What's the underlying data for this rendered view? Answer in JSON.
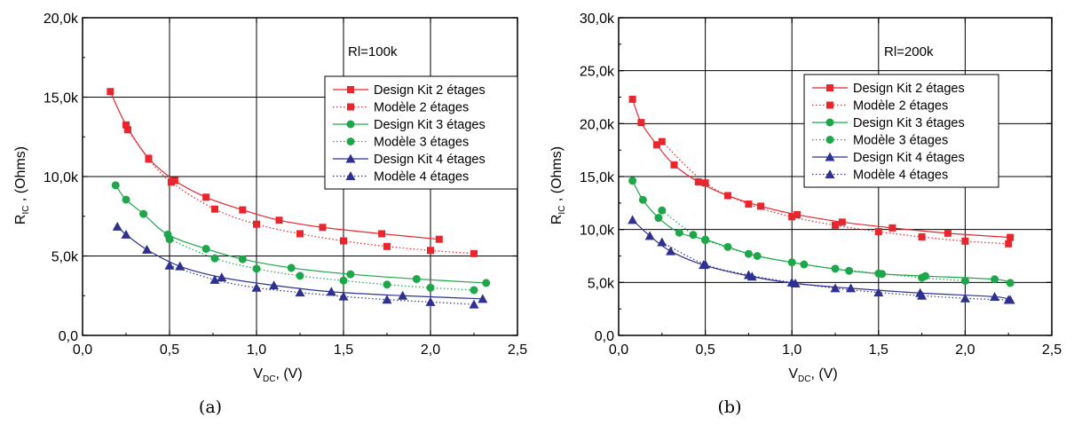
{
  "colors": {
    "red": "#e8262d",
    "green": "#1ea64a",
    "blue": "#2e3190"
  },
  "chart_data": [
    {
      "type": "line",
      "caption": "(a)",
      "annotation": "Rl=100k",
      "xlabel_main": "V",
      "xlabel_sub": "DC",
      "xlabel_rest": ", (V)",
      "ylabel_main": "R",
      "ylabel_sub": "IC",
      "ylabel_rest": " , (Ohms)",
      "xlim": [
        0,
        2.5
      ],
      "ylim": [
        0,
        20000
      ],
      "xticks": [
        0,
        0.5,
        1.0,
        1.5,
        2.0,
        2.5
      ],
      "xtick_labels": [
        "0,0",
        "0,5",
        "1,0",
        "1,5",
        "2,0",
        "2,5"
      ],
      "yticks": [
        0,
        5000,
        10000,
        15000,
        20000
      ],
      "ytick_labels": [
        "0,0",
        "5,0k",
        "10,0k",
        "15,0k",
        "20,0k"
      ],
      "grid": true,
      "legend_position": "top-right",
      "series": [
        {
          "name": "Design Kit 2 étages",
          "color": "red",
          "marker": "square",
          "line": "solid",
          "x": [
            0.16,
            0.25,
            0.38,
            0.53,
            0.71,
            0.92,
            1.13,
            1.38,
            1.72,
            2.05
          ],
          "y": [
            15350,
            13250,
            11150,
            9750,
            8700,
            7900,
            7250,
            6800,
            6400,
            6050
          ]
        },
        {
          "name": "Modèle 2 étages",
          "color": "red",
          "marker": "square",
          "line": "dotted",
          "x": [
            0.26,
            0.38,
            0.51,
            0.76,
            1.0,
            1.25,
            1.5,
            1.75,
            2.0,
            2.25
          ],
          "y": [
            12950,
            11100,
            9650,
            7950,
            7000,
            6400,
            5950,
            5600,
            5350,
            5150
          ]
        },
        {
          "name": "Design Kit 3 étages",
          "color": "green",
          "marker": "circle",
          "line": "solid",
          "x": [
            0.19,
            0.25,
            0.35,
            0.49,
            0.71,
            0.92,
            1.2,
            1.54,
            1.92,
            2.32
          ],
          "y": [
            9450,
            8550,
            7650,
            6350,
            5450,
            4800,
            4250,
            3850,
            3550,
            3300
          ]
        },
        {
          "name": "Modèle 3 étages",
          "color": "green",
          "marker": "circle",
          "line": "dotted",
          "x": [
            0.5,
            0.76,
            1.0,
            1.25,
            1.5,
            1.75,
            2.0,
            2.25
          ],
          "y": [
            6050,
            4850,
            4200,
            3750,
            3450,
            3200,
            3000,
            2850
          ]
        },
        {
          "name": "Design Kit 4 étages",
          "color": "blue",
          "marker": "triangle",
          "line": "solid",
          "x": [
            0.2,
            0.25,
            0.37,
            0.56,
            0.8,
            1.1,
            1.43,
            1.84,
            2.3
          ],
          "y": [
            6850,
            6350,
            5400,
            4350,
            3650,
            3150,
            2750,
            2500,
            2300
          ]
        },
        {
          "name": "Modèle 4 étages",
          "color": "blue",
          "marker": "triangle",
          "line": "dotted",
          "x": [
            0.5,
            0.76,
            1.0,
            1.25,
            1.5,
            1.75,
            2.0,
            2.25
          ],
          "y": [
            4400,
            3500,
            3000,
            2700,
            2450,
            2250,
            2100,
            1950
          ]
        }
      ]
    },
    {
      "type": "line",
      "caption": "(b)",
      "annotation": "Rl=200k",
      "xlabel_main": "V",
      "xlabel_sub": "DC",
      "xlabel_rest": ", (V)",
      "ylabel_main": "R",
      "ylabel_sub": "IC",
      "ylabel_rest": " , (Ohms)",
      "xlim": [
        0,
        2.5
      ],
      "ylim": [
        0,
        30000
      ],
      "xticks": [
        0,
        0.5,
        1.0,
        1.5,
        2.0,
        2.5
      ],
      "xtick_labels": [
        "0,0",
        "0,5",
        "1,0",
        "1,5",
        "2,0",
        "2,5"
      ],
      "yticks": [
        0,
        5000,
        10000,
        15000,
        20000,
        25000,
        30000
      ],
      "ytick_labels": [
        "0,0",
        "5,0k",
        "10,0k",
        "15,0k",
        "20,0k",
        "25,0k",
        "30,0k"
      ],
      "grid": true,
      "legend_position": "top-right",
      "series": [
        {
          "name": "Design Kit 2 étages",
          "color": "red",
          "marker": "square",
          "line": "solid",
          "x": [
            0.08,
            0.13,
            0.22,
            0.32,
            0.46,
            0.63,
            0.82,
            1.03,
            1.29,
            1.58,
            1.9,
            2.26
          ],
          "y": [
            22300,
            20100,
            18000,
            16100,
            14500,
            13200,
            12200,
            11400,
            10700,
            10150,
            9650,
            9250
          ]
        },
        {
          "name": "Modèle 2 étages",
          "color": "red",
          "marker": "square",
          "line": "dotted",
          "x": [
            0.25,
            0.5,
            0.75,
            1.0,
            1.25,
            1.5,
            1.75,
            2.0,
            2.25
          ],
          "y": [
            18300,
            14400,
            12400,
            11200,
            10400,
            9800,
            9300,
            8900,
            8650
          ]
        },
        {
          "name": "Design Kit 3 étages",
          "color": "green",
          "marker": "circle",
          "line": "solid",
          "x": [
            0.08,
            0.14,
            0.23,
            0.35,
            0.5,
            0.63,
            0.8,
            1.07,
            1.33,
            1.52,
            1.77,
            2.17,
            2.26
          ],
          "y": [
            14600,
            12800,
            11100,
            9700,
            9050,
            8350,
            7500,
            6700,
            6100,
            5800,
            5600,
            5300,
            4950
          ]
        },
        {
          "name": "Modèle 3 étages",
          "color": "green",
          "marker": "circle",
          "line": "dotted",
          "x": [
            0.25,
            0.43,
            0.5,
            0.75,
            1.0,
            1.25,
            1.5,
            1.75,
            2.0
          ],
          "y": [
            11800,
            9500,
            9000,
            7700,
            6900,
            6300,
            5850,
            5450,
            5150
          ]
        },
        {
          "name": "Design Kit 4 étages",
          "color": "blue",
          "marker": "triangle",
          "line": "solid",
          "x": [
            0.08,
            0.18,
            0.3,
            0.49,
            0.77,
            1.02,
            1.34,
            1.74,
            2.17,
            2.26
          ],
          "y": [
            10900,
            9400,
            7950,
            6650,
            5550,
            4900,
            4450,
            4000,
            3650,
            3350
          ]
        },
        {
          "name": "Modèle 4 étages",
          "color": "blue",
          "marker": "triangle",
          "line": "dotted",
          "x": [
            0.25,
            0.5,
            0.75,
            1.0,
            1.25,
            1.5,
            1.75,
            2.0,
            2.25
          ],
          "y": [
            8800,
            6700,
            5700,
            5000,
            4450,
            4050,
            3750,
            3500,
            3350
          ]
        }
      ]
    }
  ]
}
